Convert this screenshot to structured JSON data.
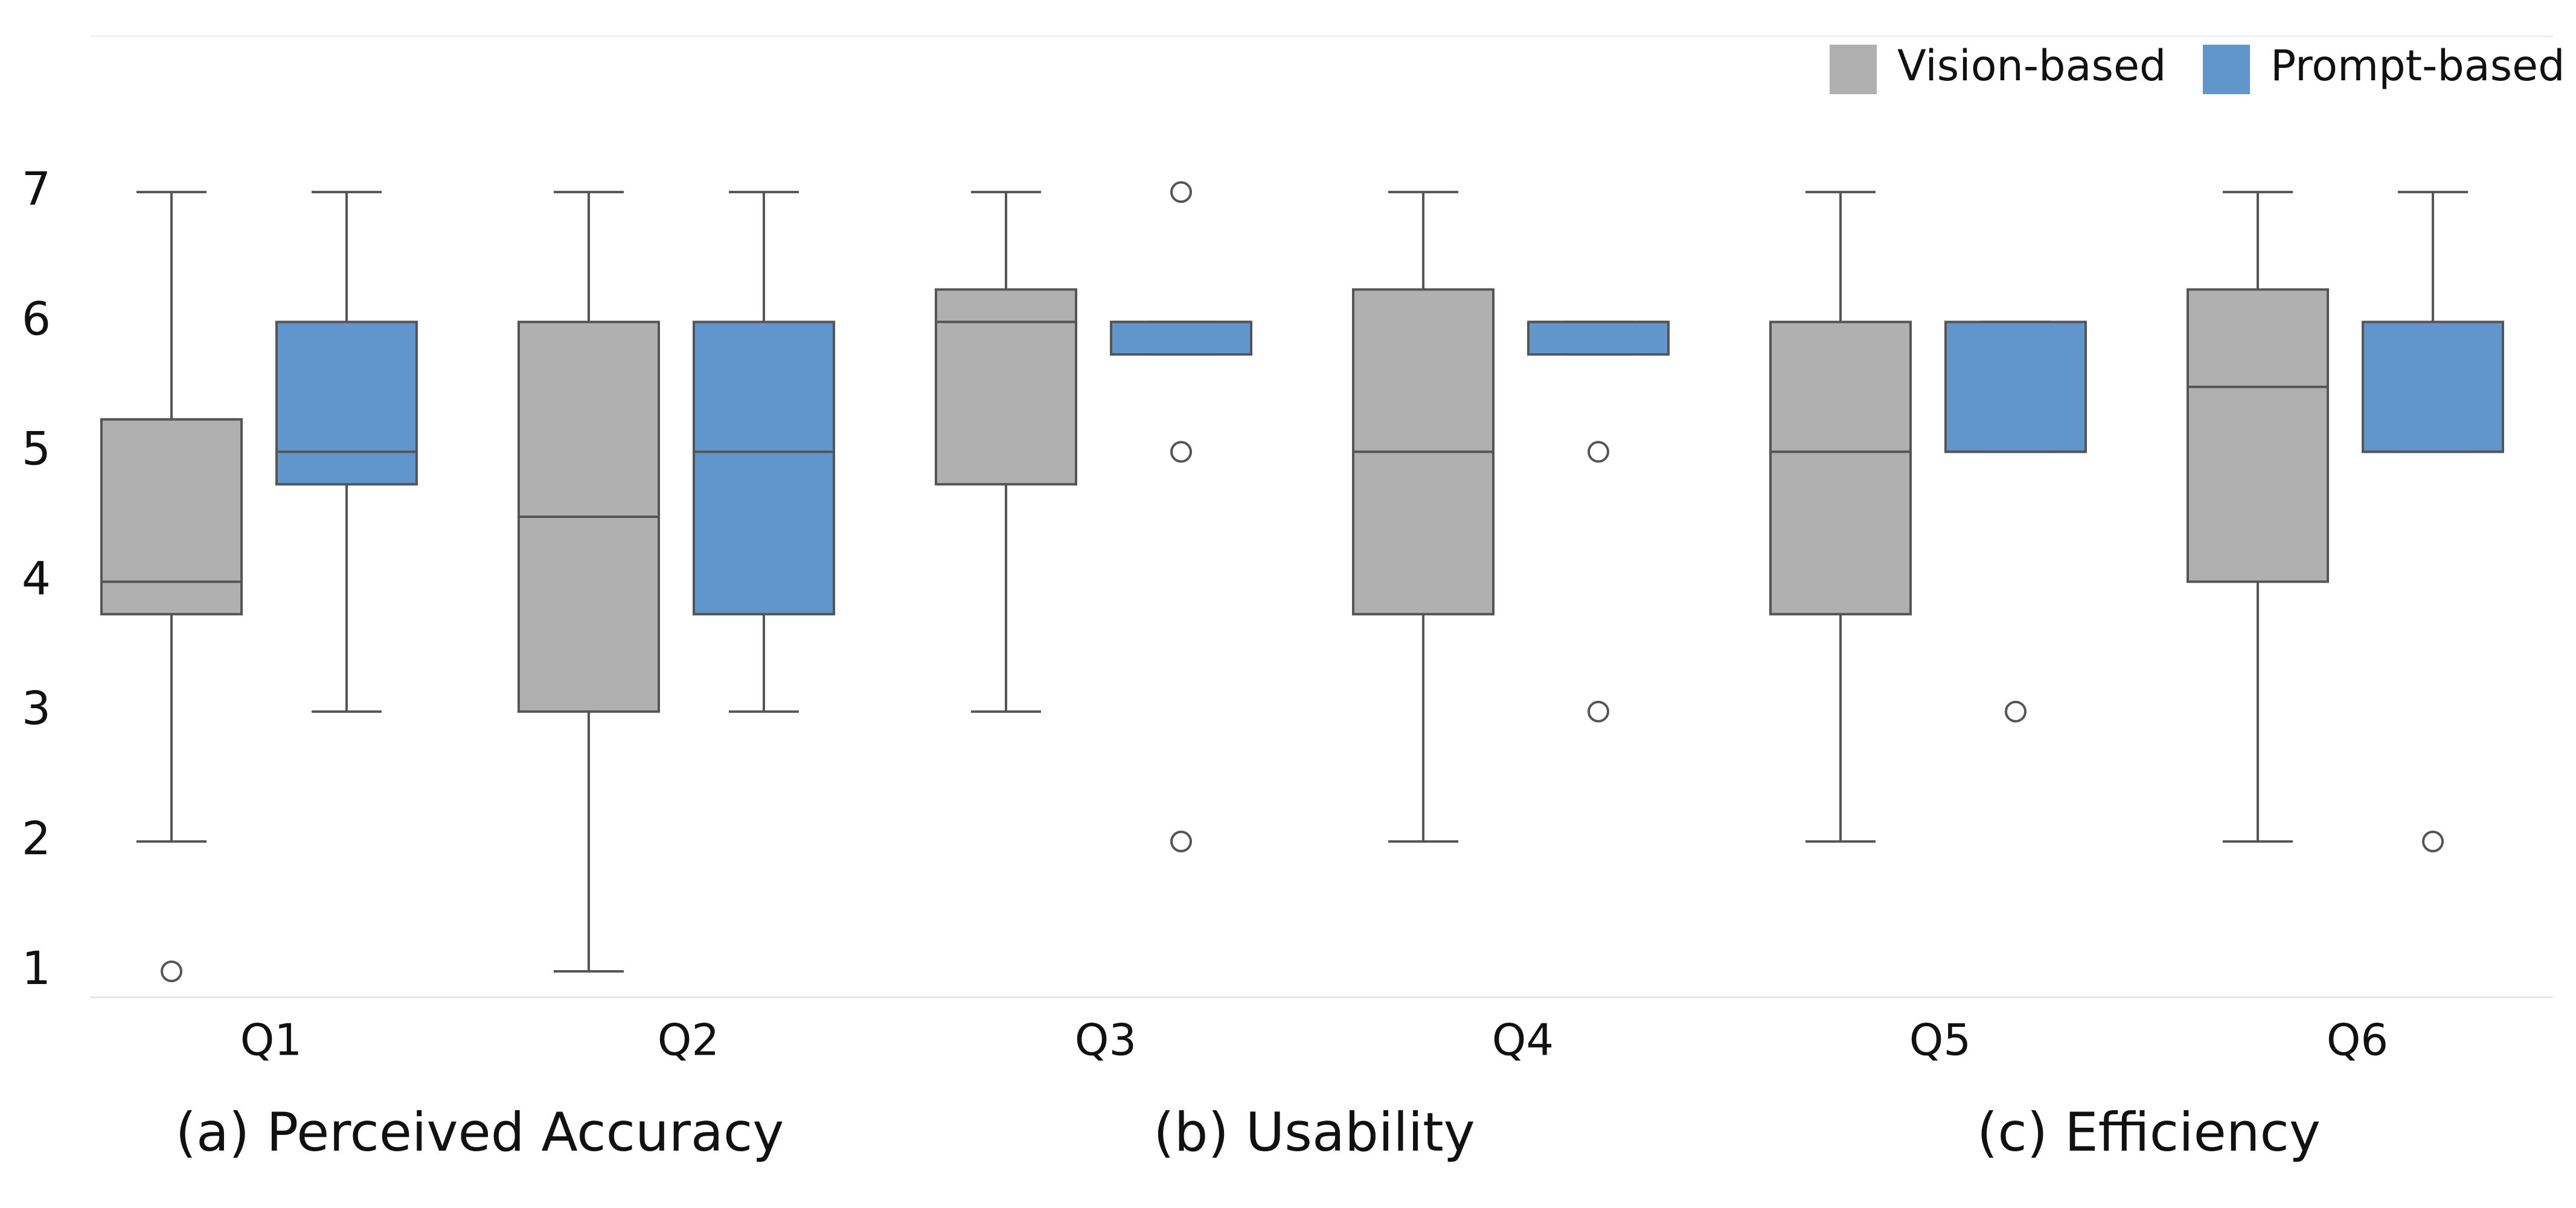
{
  "chart_data": {
    "type": "box",
    "categories": [
      "Q1",
      "Q2",
      "Q3",
      "Q4",
      "Q5",
      "Q6"
    ],
    "groups": [
      {
        "label": "(a) Perceived Accuracy",
        "span": [
          "Q1",
          "Q2"
        ]
      },
      {
        "label": "(b) Usability",
        "span": [
          "Q3",
          "Q4"
        ]
      },
      {
        "label": "(c) Efficiency",
        "span": [
          "Q5",
          "Q6"
        ]
      }
    ],
    "series": [
      {
        "name": "Vision-based",
        "color": "#b0b0b0",
        "boxes": [
          {
            "min": 2,
            "q1": 3.75,
            "median": 4,
            "q3": 5.25,
            "max": 7,
            "outliers": [
              1
            ]
          },
          {
            "min": 1,
            "q1": 3,
            "median": 4.5,
            "q3": 6,
            "max": 7,
            "outliers": []
          },
          {
            "min": 3,
            "q1": 4.75,
            "median": 6,
            "q3": 6.25,
            "max": 7,
            "outliers": []
          },
          {
            "min": 2,
            "q1": 3.75,
            "median": 5,
            "q3": 6.25,
            "max": 7,
            "outliers": []
          },
          {
            "min": 2,
            "q1": 3.75,
            "median": 5,
            "q3": 6,
            "max": 7,
            "outliers": []
          },
          {
            "min": 2,
            "q1": 4,
            "median": 5.5,
            "q3": 6.25,
            "max": 7,
            "outliers": []
          }
        ]
      },
      {
        "name": "Prompt-based",
        "color": "#6096cc",
        "boxes": [
          {
            "min": 3,
            "q1": 4.75,
            "median": 5,
            "q3": 6,
            "max": 7,
            "outliers": []
          },
          {
            "min": 3,
            "q1": 3.75,
            "median": 5,
            "q3": 6,
            "max": 7,
            "outliers": []
          },
          {
            "min": 5.75,
            "q1": 5.75,
            "median": 6,
            "q3": 6,
            "max": 6,
            "outliers": [
              7,
              5,
              2
            ]
          },
          {
            "min": 5.75,
            "q1": 5.75,
            "median": 6,
            "q3": 6,
            "max": 6,
            "outliers": [
              5,
              3
            ]
          },
          {
            "min": 5,
            "q1": 5,
            "median": 5,
            "q3": 6,
            "max": 6,
            "outliers": [
              3
            ]
          },
          {
            "min": 5,
            "q1": 5,
            "median": 5,
            "q3": 6,
            "max": 7,
            "outliers": [
              2
            ]
          }
        ]
      }
    ],
    "ylim": [
      0.8,
      8.2
    ],
    "yticks": [
      1,
      2,
      3,
      4,
      5,
      6,
      7
    ],
    "legend": "top-right"
  }
}
